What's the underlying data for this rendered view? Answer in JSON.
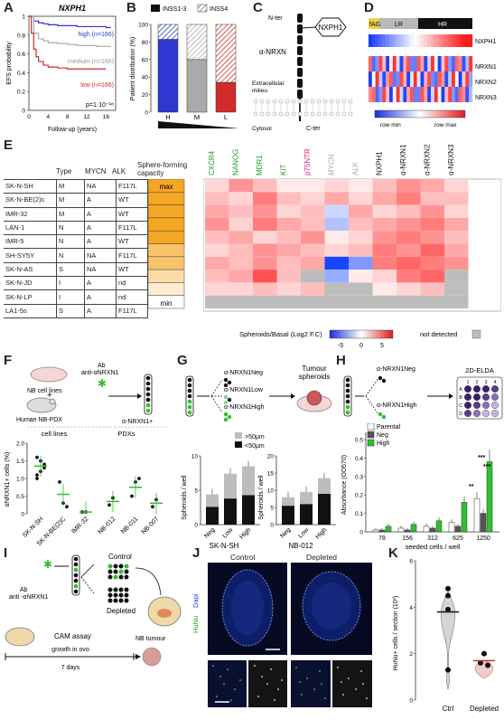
{
  "panels": {
    "A": "A",
    "B": "B",
    "C": "C",
    "D": "D",
    "E": "E",
    "F": "F",
    "G": "G",
    "H": "H",
    "I": "I",
    "J": "J",
    "K": "K"
  },
  "panelA": {
    "title": "NXPH1",
    "ylabel": "EFS probability",
    "xlabel": "Follow-up (years)",
    "xticks": [
      "0",
      "4",
      "8",
      "12",
      "16"
    ],
    "yticks": [
      "0",
      "0.2",
      "0.4",
      "0.6",
      "0.8",
      "1"
    ],
    "legend": [
      "high (n=166)",
      "medium (n=166)",
      "low (n=166)"
    ],
    "pvalue": "p=1·10⁻¹⁸",
    "colors": [
      "#2f37d0",
      "#aaaaaa",
      "#d12b2b"
    ]
  },
  "panelB": {
    "legend": [
      "INSS1-3",
      "INSS4"
    ],
    "ylabel": "Patient distribution (%)",
    "yticks": [
      "0",
      "20",
      "40",
      "60",
      "80",
      "100"
    ],
    "xticks": [
      "H",
      "M",
      "L"
    ]
  },
  "panelC": {
    "labels": [
      "N-ter",
      "NXPH1",
      "α-NRXN",
      "Extracellular milieu",
      "Cytosol",
      "C-ter"
    ]
  },
  "panelD": {
    "top_labels": [
      "fAG",
      "LR",
      "HR"
    ],
    "row_labels": [
      "NXPH1",
      "NRXN1",
      "NRXN2",
      "NRXN3"
    ],
    "legend": [
      "row min",
      "row max"
    ]
  },
  "panelE": {
    "headers": [
      "Type",
      "MYCN",
      "ALK"
    ],
    "capacity_label": "Sphere-forming capacity",
    "capacity_ends": [
      "max",
      "min"
    ],
    "rows": [
      [
        "SK-N-SH",
        "M",
        "NA",
        "F117L"
      ],
      [
        "SK-N-BE(2)c",
        "M",
        "A",
        "WT"
      ],
      [
        "IMR-32",
        "M",
        "A",
        "WT"
      ],
      [
        "LAN-1",
        "N",
        "A",
        "F117L"
      ],
      [
        "IMR-5",
        "N",
        "A",
        "WT"
      ],
      [
        "SH-SY5Y",
        "N",
        "NA",
        "F117L"
      ],
      [
        "SK-N-AS",
        "S",
        "NA",
        "WT"
      ],
      [
        "SK-N-JD",
        "I",
        "A",
        "nd"
      ],
      [
        "SK-N-LP",
        "I",
        "A",
        "nd"
      ],
      [
        "LA1-5s",
        "S",
        "A",
        "F117L"
      ]
    ],
    "columns": [
      "CXCR4",
      "NANOG",
      "MDR1",
      "KIT",
      "p75NTR",
      "MYCN",
      "ALK",
      "NXPH1",
      "α-NRXN1",
      "α-NRXN2",
      "α-NRXN3"
    ],
    "column_colors": [
      "#1e9b1e",
      "#1e9b1e",
      "#1e9b1e",
      "#1e9b1e",
      "#d4257e",
      "#aaaaaa",
      "#aaaaaa",
      "#111111",
      "#111111",
      "#111111",
      "#111111"
    ],
    "scale_label": "Spheroids/Basal (Log2 F.C)",
    "scale_ticks": [
      "-5",
      "0",
      "5"
    ],
    "not_detected": "not detected"
  },
  "panelF": {
    "labels": [
      "Ab",
      "anti-αNRXN1",
      "NB cell lines",
      "Human NB-PDX",
      "α-NRXN1+",
      "cell lines",
      "PDXs"
    ],
    "ylabel": "αNRXN1+ cells (%)",
    "yticks": [
      "0",
      "0.5",
      "1.0",
      "1.5",
      "2.0"
    ],
    "xticks": [
      "SK-N-SH",
      "SK-N-BE(2)C",
      "IMR-32",
      "NB-012",
      "NB-011",
      "NB-007"
    ]
  },
  "panelG": {
    "labels": [
      "α-NRXN1Neg",
      "α-NRXN1Low",
      "α-NRXN1High",
      "Tumour spheroids"
    ],
    "legend": [
      ">50μm",
      "<50μm"
    ],
    "ylabel": "Spheroids / well",
    "xticks": [
      "Neg",
      "Low",
      "High"
    ],
    "groups": [
      "SK-N-SH",
      "NB-012"
    ],
    "yticks_left": [
      "0",
      "5",
      "10"
    ],
    "yticks_right": [
      "0",
      "5",
      "10",
      "15",
      "20"
    ]
  },
  "panelH": {
    "labels": [
      "α-NRXN1Neg",
      "α-NRXN1High",
      "2D-ELDA"
    ],
    "plate_cols": [
      "1",
      "2",
      "3",
      "4"
    ],
    "plate_rows": [
      "A",
      "B",
      "C",
      "D"
    ],
    "legend": [
      "Parental",
      "Neg",
      "High"
    ],
    "ylabel": "Absorbance (OD570)",
    "yticks": [
      "0",
      "0.1",
      "0.2",
      "0.3",
      "0.4",
      "0.5"
    ],
    "xticks": [
      "78",
      "156",
      "312",
      "625",
      "1250"
    ],
    "xlabel": "seeded cells / well",
    "colors": [
      "#ffffff",
      "#555555",
      "#2ec02e"
    ]
  },
  "panelI": {
    "labels": [
      "Ab",
      "anti -αNRXN1",
      "Control",
      "Depleted",
      "CAM assay",
      "NB tumour",
      "growth in ovo",
      "7 days"
    ]
  },
  "panelJ": {
    "titles": [
      "Control",
      "Depleted"
    ],
    "ylabel_a": "HuNu",
    "ylabel_b": "Dapi"
  },
  "panelK": {
    "ylabel": "HuNu+ cells / section (10²)",
    "yticks": [
      "0",
      "2",
      "4",
      "6"
    ],
    "xticks": [
      "Ctrl",
      "Depleted"
    ]
  },
  "chart_data": [
    {
      "type": "line",
      "title": "NXPH1",
      "xlabel": "Follow-up (years)",
      "ylabel": "EFS probability",
      "xlim": [
        0,
        18
      ],
      "ylim": [
        0,
        1
      ],
      "series": [
        {
          "name": "high (n=166)",
          "x": [
            0,
            1,
            2,
            3,
            4,
            6,
            8,
            10,
            12,
            14,
            16,
            17
          ],
          "y": [
            1,
            0.95,
            0.93,
            0.92,
            0.91,
            0.9,
            0.9,
            0.89,
            0.89,
            0.89,
            0.88,
            0.88
          ]
        },
        {
          "name": "medium (n=166)",
          "x": [
            0,
            1,
            2,
            3,
            4,
            6,
            8,
            10,
            12,
            14,
            16,
            17
          ],
          "y": [
            1,
            0.82,
            0.76,
            0.74,
            0.72,
            0.71,
            0.7,
            0.69,
            0.69,
            0.68,
            0.68,
            0.68
          ]
        },
        {
          "name": "low (n=166)",
          "x": [
            0,
            0.5,
            1,
            1.5,
            2,
            3,
            4,
            6,
            8,
            10,
            12,
            14,
            16
          ],
          "y": [
            1,
            0.82,
            0.65,
            0.57,
            0.52,
            0.48,
            0.46,
            0.45,
            0.44,
            0.44,
            0.44,
            0.44,
            0.44
          ]
        }
      ]
    },
    {
      "type": "bar",
      "ylabel": "Patient distribution (%)",
      "categories": [
        "H",
        "M",
        "L"
      ],
      "ylim": [
        0,
        100
      ],
      "series": [
        {
          "name": "INSS1-3",
          "values": [
            83,
            60,
            34
          ]
        },
        {
          "name": "INSS4",
          "values": [
            17,
            40,
            66
          ]
        }
      ]
    },
    {
      "type": "scatter",
      "ylabel": "αNRXN1+ cells (%)",
      "categories": [
        "SK-N-SH",
        "SK-N-BE(2)C",
        "IMR-32",
        "NB-012",
        "NB-011",
        "NB-007"
      ],
      "means": [
        1.35,
        0.55,
        0.05,
        0.35,
        0.75,
        0.3
      ],
      "ylim": [
        0,
        2
      ]
    },
    {
      "type": "bar",
      "ylabel": "Spheroids / well",
      "categories": [
        "Neg",
        "Low",
        "High"
      ],
      "series": [
        {
          "name": "SK-N-SH >50μm",
          "values": [
            1.8,
            3.6,
            4.2
          ]
        },
        {
          "name": "SK-N-SH <50μm",
          "values": [
            2.6,
            3.8,
            4.3
          ]
        },
        {
          "name": "NB-012 >50μm",
          "values": [
            2.5,
            3.5,
            4.5
          ]
        },
        {
          "name": "NB-012 <50μm",
          "values": [
            5.5,
            6,
            9
          ]
        }
      ]
    },
    {
      "type": "bar",
      "ylabel": "Absorbance (OD570)",
      "xlabel": "seeded cells / well",
      "categories": [
        "78",
        "156",
        "312",
        "625",
        "1250"
      ],
      "ylim": [
        0,
        0.5
      ],
      "series": [
        {
          "name": "Parental",
          "values": [
            0.01,
            0.02,
            0.03,
            0.05,
            0.18
          ]
        },
        {
          "name": "Neg",
          "values": [
            0.01,
            0.01,
            0.02,
            0.03,
            0.1
          ]
        },
        {
          "name": "High",
          "values": [
            0.03,
            0.04,
            0.06,
            0.16,
            0.38
          ]
        }
      ]
    },
    {
      "type": "scatter",
      "ylabel": "HuNu+ cells / section (10²)",
      "categories": [
        "Ctrl",
        "Depleted"
      ],
      "means": [
        3.8,
        1.7
      ],
      "ylim": [
        0,
        6
      ]
    }
  ]
}
